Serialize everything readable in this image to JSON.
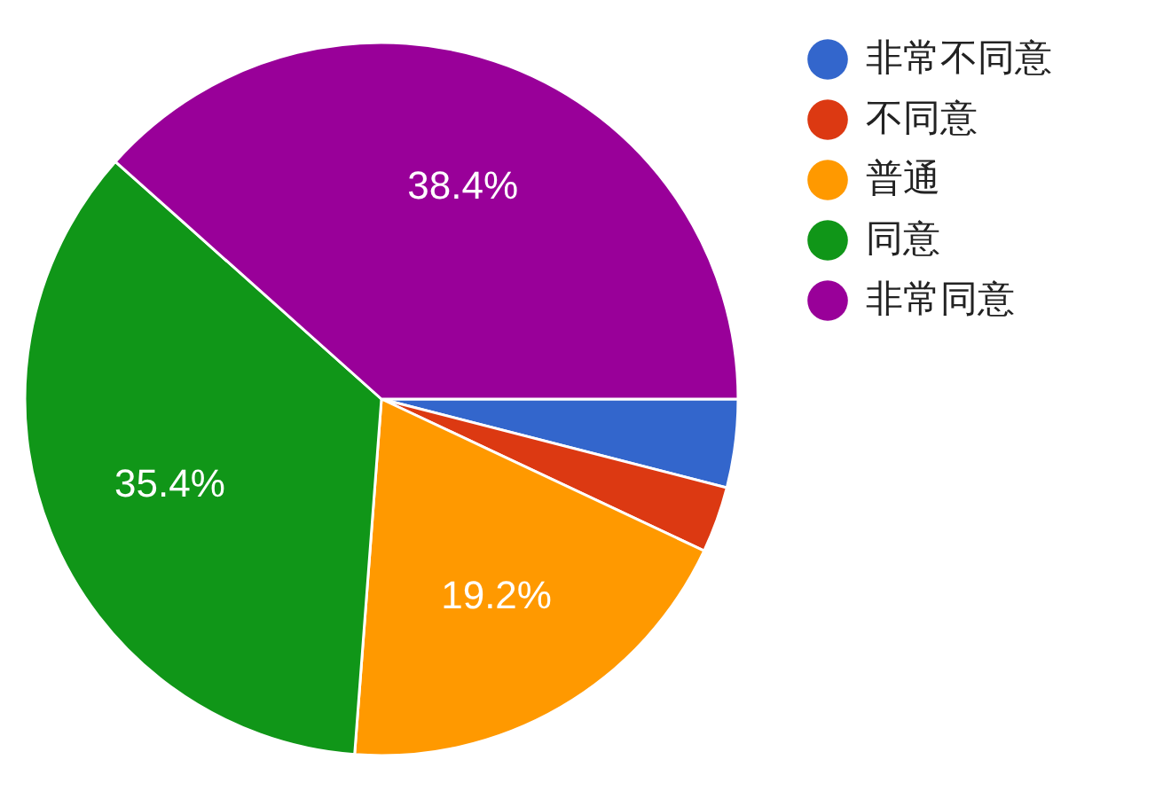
{
  "chart_data": {
    "type": "pie",
    "categories": [
      "非常不同意",
      "不同意",
      "普通",
      "同意",
      "非常同意"
    ],
    "values": [
      4.0,
      3.0,
      19.2,
      35.4,
      38.4
    ],
    "colors": [
      "#3366cc",
      "#dc3912",
      "#ff9900",
      "#109618",
      "#990099"
    ],
    "value_labels": [
      null,
      null,
      "19.2%",
      "35.4%",
      "38.4%"
    ],
    "legend": "right"
  }
}
